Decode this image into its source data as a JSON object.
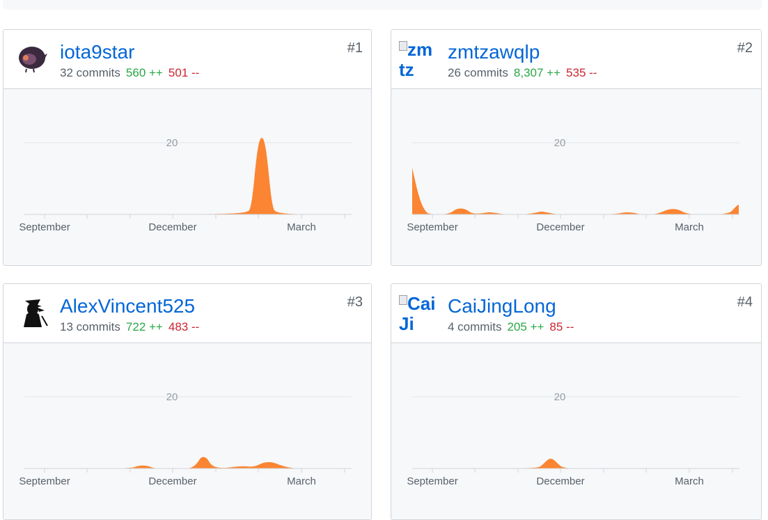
{
  "contributors": [
    {
      "username": "iota9star",
      "rank": "#1",
      "commits": "32 commits",
      "additions": "560 ++",
      "deletions": "501 --",
      "avatar": {
        "type": "image",
        "icon": "bird-avatar-icon"
      },
      "chart_data": {
        "type": "area",
        "x_ticks": [
          "September",
          "December",
          "March"
        ],
        "y_ticks": [
          20
        ],
        "ylim": [
          0,
          25
        ],
        "color": "#fb8532",
        "peaks": [
          {
            "at": "mid-February",
            "value": 21
          }
        ]
      }
    },
    {
      "username": "zmtzawqlp",
      "rank": "#2",
      "commits": "26 commits",
      "additions": "8,307 ++",
      "deletions": "535 --",
      "avatar": {
        "type": "broken",
        "alt": "zmtz"
      },
      "chart_data": {
        "type": "area",
        "x_ticks": [
          "September",
          "December",
          "March"
        ],
        "y_ticks": [
          20
        ],
        "ylim": [
          0,
          25
        ],
        "color": "#fb8532",
        "peaks": [
          {
            "at": "August",
            "value": 13
          },
          {
            "at": "October",
            "value": 2
          },
          {
            "at": "November",
            "value": 1
          },
          {
            "at": "December",
            "value": 0.6
          },
          {
            "at": "February",
            "value": 0.8
          },
          {
            "at": "March",
            "value": 2
          },
          {
            "at": "April",
            "value": 3
          }
        ]
      }
    },
    {
      "username": "AlexVincent525",
      "rank": "#3",
      "commits": "13 commits",
      "additions": "722 ++",
      "deletions": "483 --",
      "avatar": {
        "type": "image",
        "icon": "character-avatar-icon"
      },
      "chart_data": {
        "type": "area",
        "x_ticks": [
          "September",
          "December",
          "March"
        ],
        "y_ticks": [
          20
        ],
        "ylim": [
          0,
          25
        ],
        "color": "#fb8532",
        "peaks": [
          {
            "at": "November",
            "value": 1
          },
          {
            "at": "January",
            "value": 4
          },
          {
            "at": "January",
            "value": 1
          },
          {
            "at": "February",
            "value": 2
          }
        ]
      }
    },
    {
      "username": "CaiJingLong",
      "rank": "#4",
      "commits": "4 commits",
      "additions": "205 ++",
      "deletions": "85 --",
      "avatar": {
        "type": "broken",
        "alt": "CaiJi"
      },
      "chart_data": {
        "type": "area",
        "x_ticks": [
          "September",
          "December",
          "March"
        ],
        "y_ticks": [
          20
        ],
        "ylim": [
          0,
          25
        ],
        "color": "#fb8532",
        "peaks": [
          {
            "at": "December",
            "value": 3
          }
        ]
      }
    }
  ]
}
